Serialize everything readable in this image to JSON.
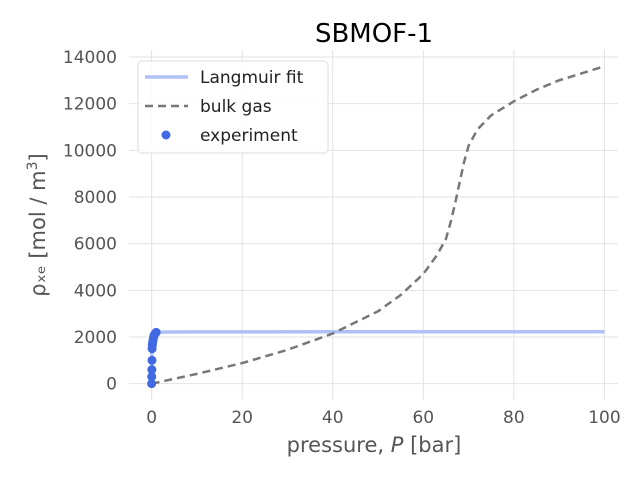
{
  "chart_data": {
    "type": "line",
    "title": "SBMOF-1",
    "xlabel": "pressure, P [bar]",
    "xlabel_parts": {
      "prefix": "pressure, ",
      "var": "P",
      "suffix": " [bar]"
    },
    "ylabel": "ρₓₑ [mol / m³]",
    "ylabel_parts": {
      "main": "ρₓₑ [mol / m",
      "sup": "3",
      "end": "]"
    },
    "xlim": [
      -5,
      103
    ],
    "ylim": [
      -700,
      14300
    ],
    "xticks": [
      0,
      20,
      40,
      60,
      80,
      100
    ],
    "yticks": [
      0,
      2000,
      4000,
      6000,
      8000,
      10000,
      12000,
      14000
    ],
    "grid": true,
    "legend_position": "top-left",
    "series": [
      {
        "name": "Langmuir fit",
        "style": "solid",
        "color": "#aec0f5",
        "x": [
          0,
          0.05,
          0.1,
          0.2,
          0.3,
          0.5,
          0.8,
          1,
          2,
          5,
          10,
          20,
          40,
          60,
          80,
          100
        ],
        "y": [
          0,
          1500,
          1850,
          2050,
          2120,
          2170,
          2195,
          2200,
          2210,
          2215,
          2218,
          2220,
          2222,
          2223,
          2224,
          2225
        ]
      },
      {
        "name": "bulk gas",
        "style": "dashed",
        "color": "#777777",
        "x": [
          0,
          10,
          20,
          30,
          40,
          50,
          55,
          60,
          63,
          65,
          66,
          67,
          68,
          69,
          70,
          72,
          75,
          80,
          85,
          90,
          95,
          100
        ],
        "y": [
          0,
          420,
          880,
          1450,
          2150,
          3100,
          3800,
          4700,
          5500,
          6200,
          6900,
          7700,
          8600,
          9500,
          10200,
          10900,
          11500,
          12100,
          12600,
          13000,
          13300,
          13600
        ]
      },
      {
        "name": "experiment",
        "style": "scatter",
        "color": "#4169e1",
        "x": [
          0,
          0.02,
          0.05,
          0.08,
          0.1,
          0.15,
          0.2,
          0.3,
          0.4,
          0.5,
          0.6,
          0.8,
          1.0
        ],
        "y": [
          0,
          300,
          600,
          1000,
          1500,
          1650,
          1750,
          1850,
          1950,
          2050,
          2100,
          2150,
          2200
        ]
      }
    ]
  }
}
